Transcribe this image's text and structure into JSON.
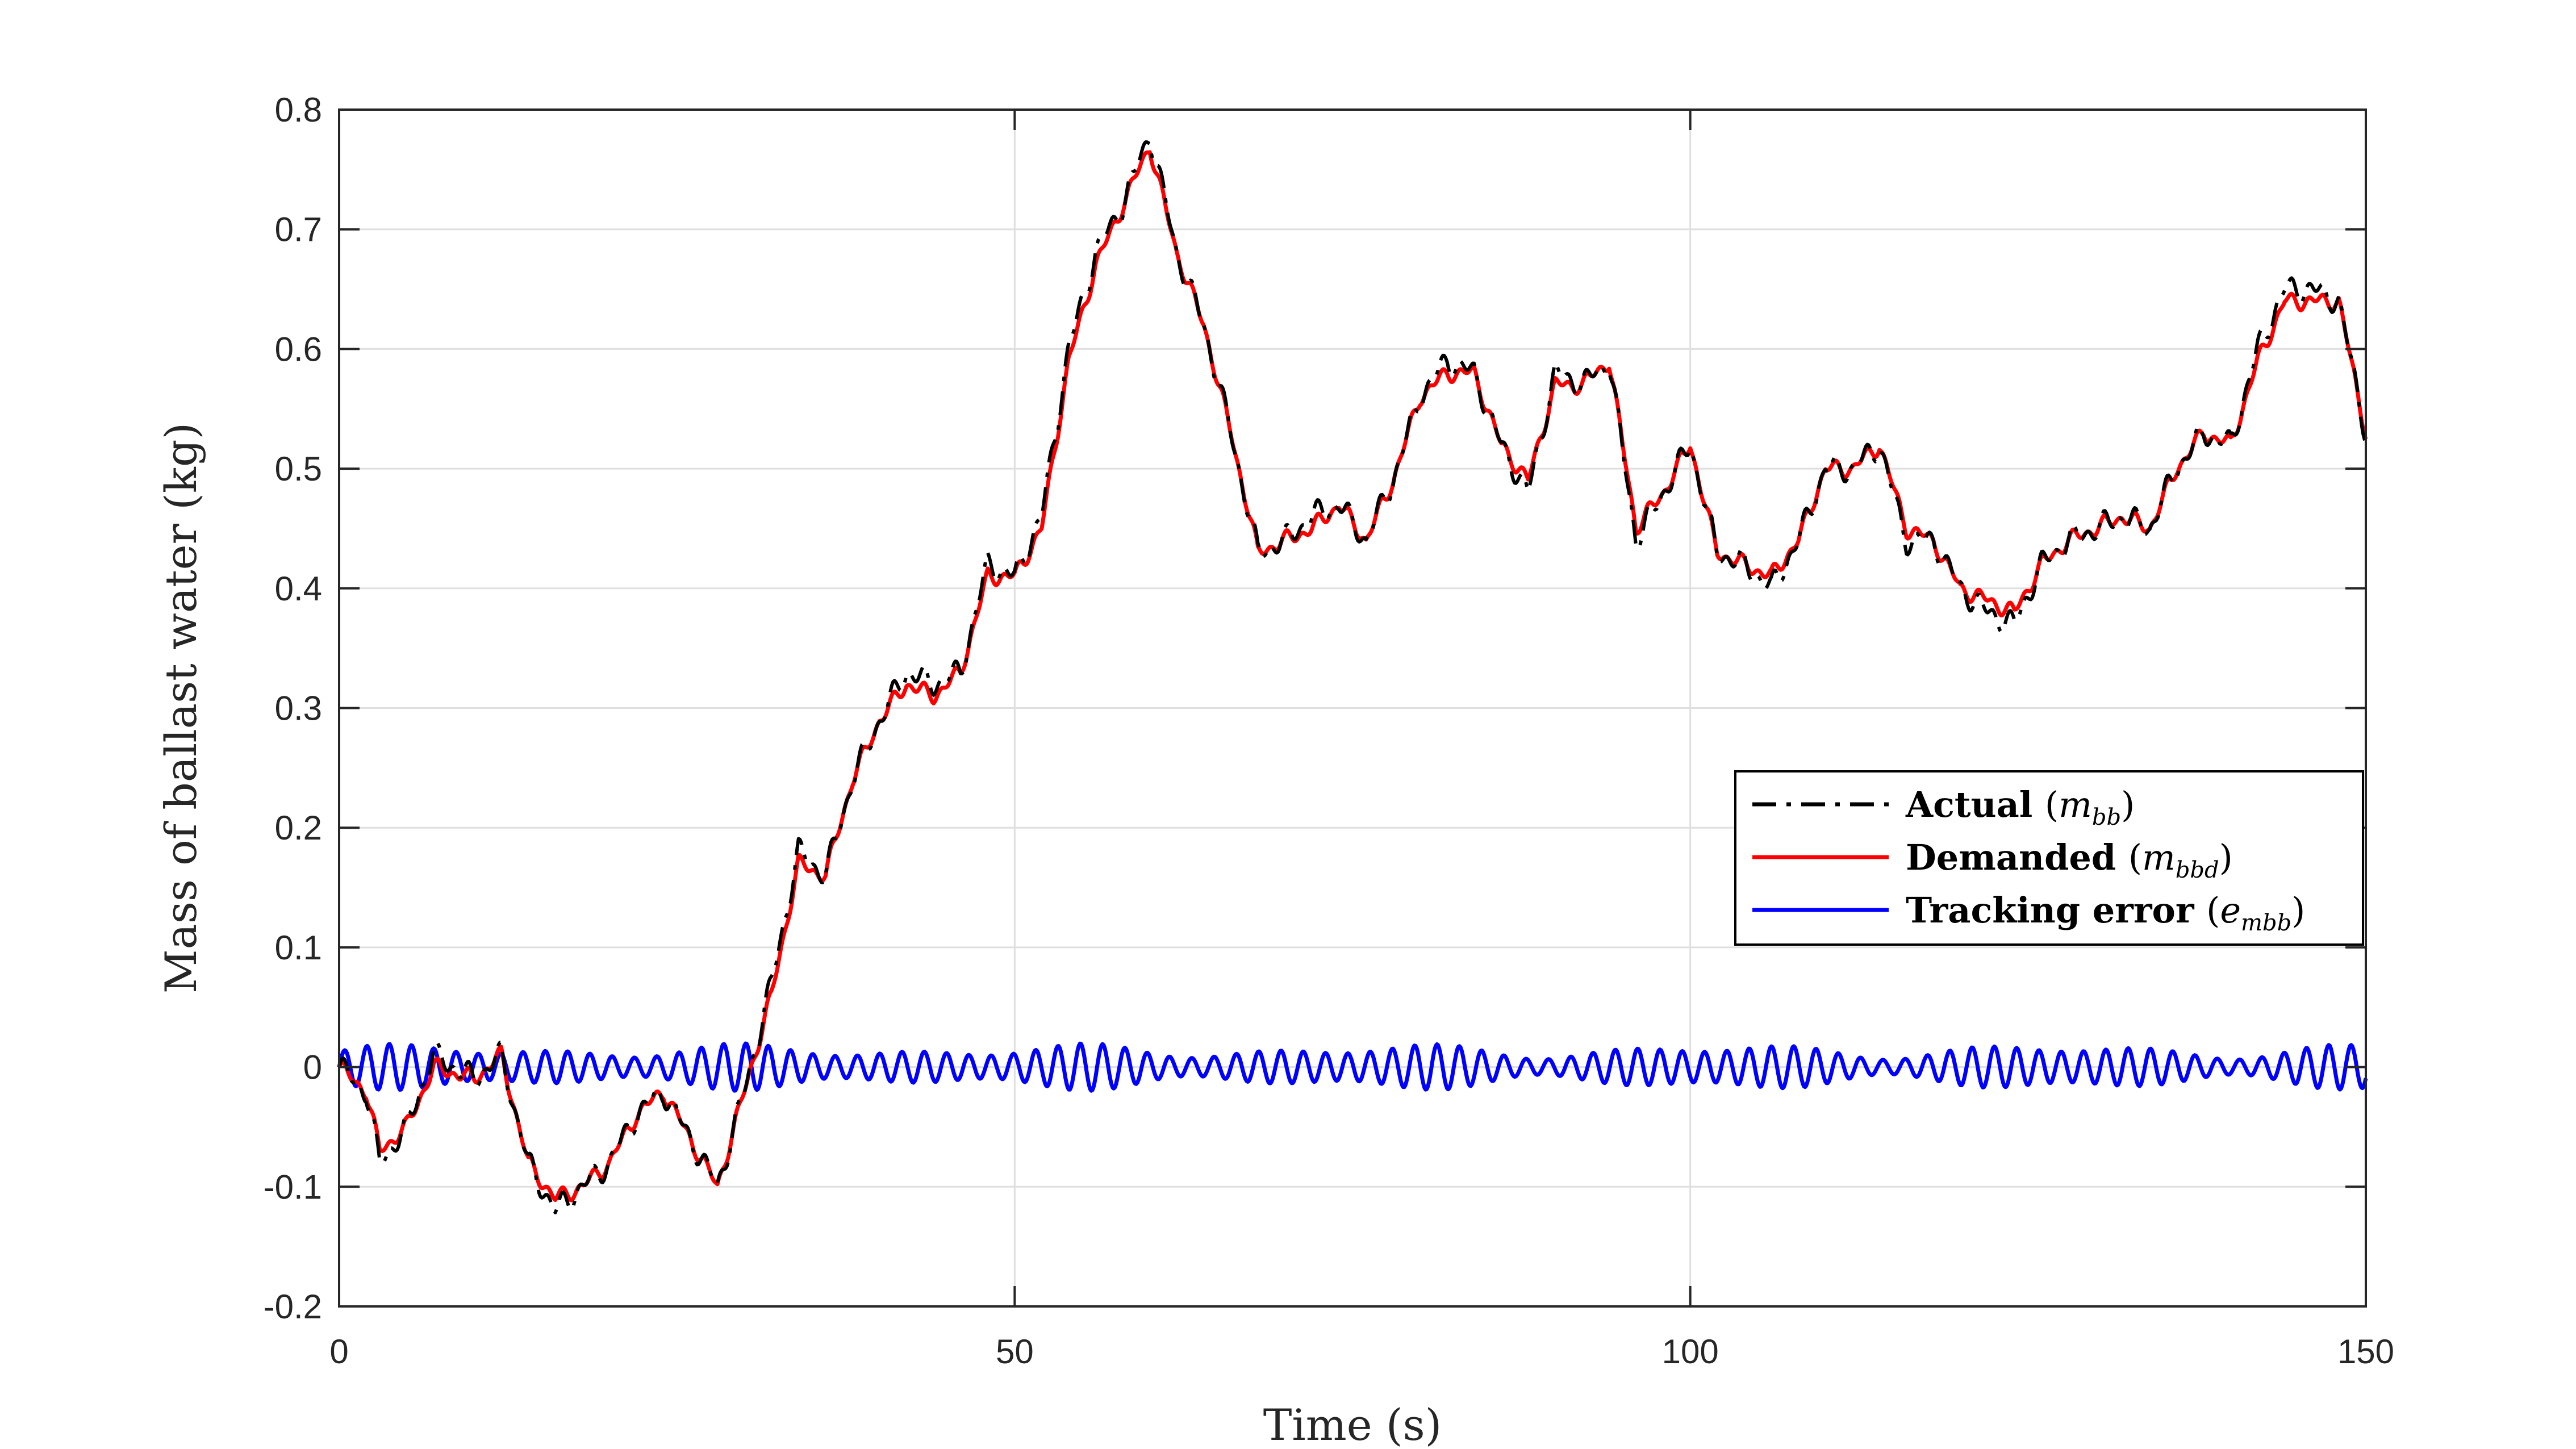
{
  "chart_data": {
    "type": "line",
    "title": "",
    "xlabel": "Time (s)",
    "ylabel": "Mass of ballast water (kg)",
    "xlim": [
      0,
      150
    ],
    "ylim": [
      -0.2,
      0.8
    ],
    "xticks": [
      0,
      50,
      100,
      150
    ],
    "xtick_labels": [
      "0",
      "50",
      "100",
      "150"
    ],
    "yticks": [
      -0.2,
      -0.1,
      0,
      0.1,
      0.2,
      0.3,
      0.4,
      0.5,
      0.6,
      0.7,
      0.8
    ],
    "ytick_labels": [
      "-0.2",
      "-0.1",
      "0",
      "0.1",
      "0.2",
      "0.3",
      "0.4",
      "0.5",
      "0.6",
      "0.7",
      "0.8"
    ],
    "grid": true,
    "legend_position": "center-right",
    "series": [
      {
        "name": "Actual",
        "symbol": "m",
        "subscript": "bb",
        "color": "#000000",
        "style": "dash-dot",
        "x": [
          0,
          2,
          3,
          5,
          7,
          10,
          12,
          14,
          16,
          18,
          20,
          22,
          24,
          26,
          28,
          30,
          32,
          34,
          36,
          38,
          40,
          42,
          44,
          46,
          48,
          50,
          52,
          54,
          56,
          58,
          60,
          62,
          64,
          66,
          68,
          70,
          72,
          74,
          76,
          78,
          80,
          82,
          84,
          86,
          88,
          90,
          92,
          94,
          96,
          98,
          100,
          102,
          104,
          106,
          108,
          110,
          112,
          114,
          116,
          118,
          120,
          122,
          124,
          126,
          128,
          130,
          132,
          134,
          136,
          138,
          140,
          142,
          144,
          146,
          148,
          150
        ],
        "values": [
          0.0,
          -0.02,
          -0.08,
          -0.05,
          0.01,
          -0.01,
          0.01,
          -0.08,
          -0.12,
          -0.1,
          -0.08,
          -0.04,
          -0.02,
          -0.06,
          -0.1,
          -0.02,
          0.07,
          0.18,
          0.16,
          0.24,
          0.29,
          0.33,
          0.32,
          0.33,
          0.42,
          0.41,
          0.46,
          0.6,
          0.68,
          0.72,
          0.78,
          0.68,
          0.62,
          0.53,
          0.43,
          0.44,
          0.46,
          0.47,
          0.44,
          0.49,
          0.56,
          0.59,
          0.58,
          0.52,
          0.48,
          0.58,
          0.57,
          0.59,
          0.44,
          0.48,
          0.52,
          0.43,
          0.42,
          0.4,
          0.44,
          0.5,
          0.5,
          0.52,
          0.44,
          0.44,
          0.4,
          0.38,
          0.37,
          0.42,
          0.44,
          0.45,
          0.46,
          0.45,
          0.5,
          0.53,
          0.52,
          0.6,
          0.65,
          0.65,
          0.64,
          0.53
        ]
      },
      {
        "name": "Demanded",
        "symbol": "m",
        "subscript": "bbd",
        "color": "#ff0000",
        "style": "solid",
        "x": [
          0,
          2,
          3,
          5,
          7,
          10,
          12,
          14,
          16,
          18,
          20,
          22,
          24,
          26,
          28,
          30,
          32,
          34,
          36,
          38,
          40,
          42,
          44,
          46,
          48,
          50,
          52,
          54,
          56,
          58,
          60,
          62,
          64,
          66,
          68,
          70,
          72,
          74,
          76,
          78,
          80,
          82,
          84,
          86,
          88,
          90,
          92,
          94,
          96,
          98,
          100,
          102,
          104,
          106,
          108,
          110,
          112,
          114,
          116,
          118,
          120,
          122,
          124,
          126,
          128,
          130,
          132,
          134,
          136,
          138,
          140,
          142,
          144,
          146,
          148,
          150
        ],
        "values": [
          0.0,
          -0.02,
          -0.07,
          -0.05,
          0.0,
          -0.01,
          0.01,
          -0.08,
          -0.11,
          -0.1,
          -0.08,
          -0.04,
          -0.02,
          -0.06,
          -0.1,
          -0.02,
          0.06,
          0.17,
          0.16,
          0.24,
          0.29,
          0.32,
          0.31,
          0.33,
          0.41,
          0.41,
          0.45,
          0.59,
          0.67,
          0.72,
          0.77,
          0.68,
          0.62,
          0.53,
          0.43,
          0.44,
          0.45,
          0.47,
          0.44,
          0.49,
          0.56,
          0.58,
          0.58,
          0.52,
          0.49,
          0.57,
          0.57,
          0.59,
          0.45,
          0.48,
          0.52,
          0.43,
          0.42,
          0.41,
          0.44,
          0.5,
          0.5,
          0.52,
          0.45,
          0.44,
          0.4,
          0.39,
          0.38,
          0.42,
          0.44,
          0.45,
          0.46,
          0.45,
          0.5,
          0.53,
          0.52,
          0.59,
          0.64,
          0.64,
          0.64,
          0.53
        ]
      },
      {
        "name": "Tracking error",
        "symbol": "e",
        "subscript": "mbb",
        "color": "#0000ff",
        "style": "solid",
        "oscillation": {
          "amplitude": 0.02,
          "period": 1.65
        },
        "x": [
          0,
          150
        ],
        "values": [
          0.0,
          0.0
        ]
      }
    ]
  }
}
